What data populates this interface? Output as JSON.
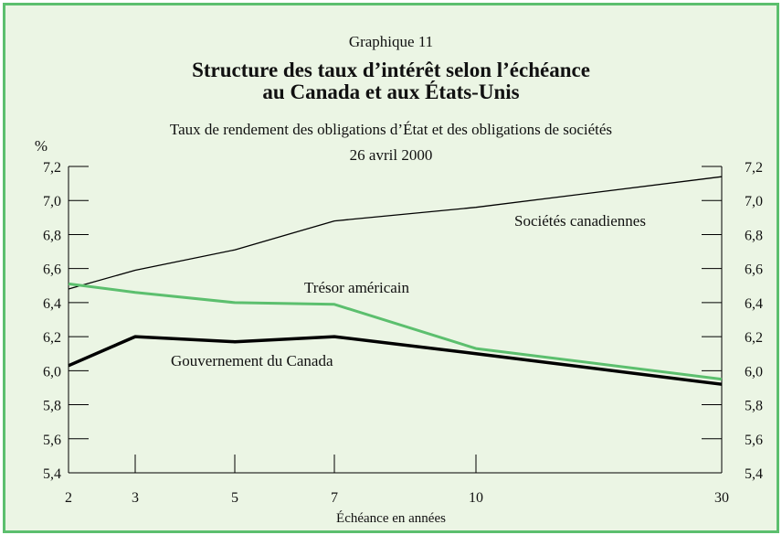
{
  "chart_data": {
    "type": "line",
    "label": "Graphique 11",
    "title": "Structure des taux d’intérêt selon l’échéance",
    "title_line2": "au Canada et aux États-Unis",
    "subtitle": "Taux de rendement des obligations d’État et des obligations de sociétés",
    "date": "26 avril 2000",
    "xlabel": "Échéance en années",
    "ylabel": "%",
    "x_categories": [
      "2",
      "3",
      "5",
      "7",
      "10",
      "30"
    ],
    "ylim": [
      5.4,
      7.2
    ],
    "y_ticks": [
      "5,4",
      "5,6",
      "5,8",
      "6,0",
      "6,2",
      "6,4",
      "6,6",
      "6,8",
      "7,0",
      "7,2"
    ],
    "grid": false,
    "series": [
      {
        "name": "Sociétés canadiennes",
        "x": [
          2,
          3,
          5,
          7,
          10,
          30
        ],
        "values": [
          6.48,
          6.59,
          6.71,
          6.88,
          6.96,
          7.14
        ],
        "color": "#000000"
      },
      {
        "name": "Trésor américain",
        "x": [
          2,
          3,
          5,
          7,
          10,
          30
        ],
        "values": [
          6.51,
          6.46,
          6.4,
          6.39,
          6.13,
          5.95
        ],
        "color": "#5cbf6e"
      },
      {
        "name": "Gouvernement du Canada",
        "x": [
          2,
          3,
          5,
          7,
          10,
          30
        ],
        "values": [
          6.03,
          6.2,
          6.17,
          6.2,
          6.1,
          5.92
        ],
        "color": "#000000"
      }
    ]
  }
}
